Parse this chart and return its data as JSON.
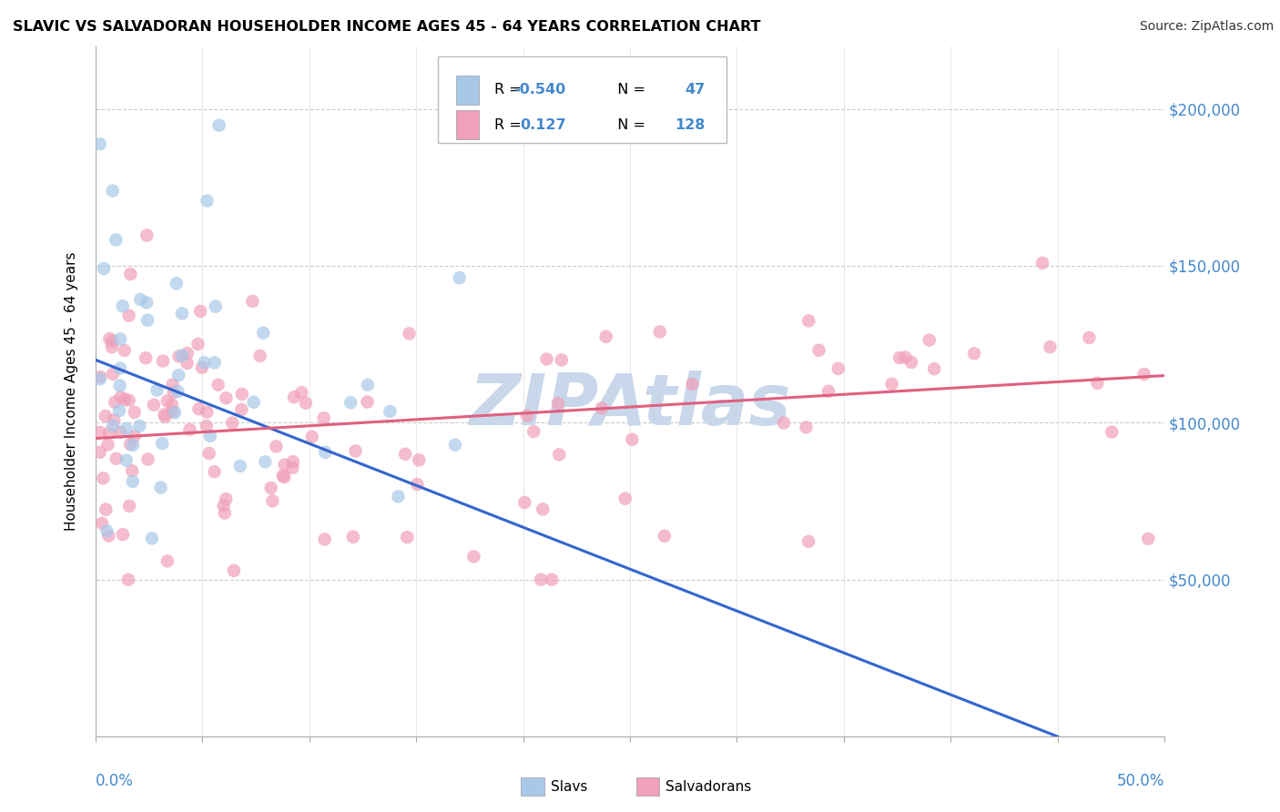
{
  "title": "SLAVIC VS SALVADORAN HOUSEHOLDER INCOME AGES 45 - 64 YEARS CORRELATION CHART",
  "source": "Source: ZipAtlas.com",
  "ylabel": "Householder Income Ages 45 - 64 years",
  "xlim": [
    0.0,
    0.5
  ],
  "ylim": [
    0,
    220000
  ],
  "slavs_R": "-0.540",
  "salvadorans_R": "0.127",
  "slavs_N": "47",
  "salvadorans_N": "128",
  "slav_color": "#a8c8e8",
  "salvadoran_color": "#f0a0b8",
  "slav_line_color": "#3366cc",
  "salvadoran_line_color": "#e06080",
  "watermark_color": "#c8d8ea",
  "tick_color": "#4488cc",
  "legend_box_color": "#cccccc",
  "slav_line_x0": 0.0,
  "slav_line_y0": 120000,
  "slav_line_x1": 0.45,
  "slav_line_y1": 0,
  "salv_line_x0": 0.0,
  "salv_line_y0": 95000,
  "salv_line_x1": 0.5,
  "salv_line_y1": 115000
}
